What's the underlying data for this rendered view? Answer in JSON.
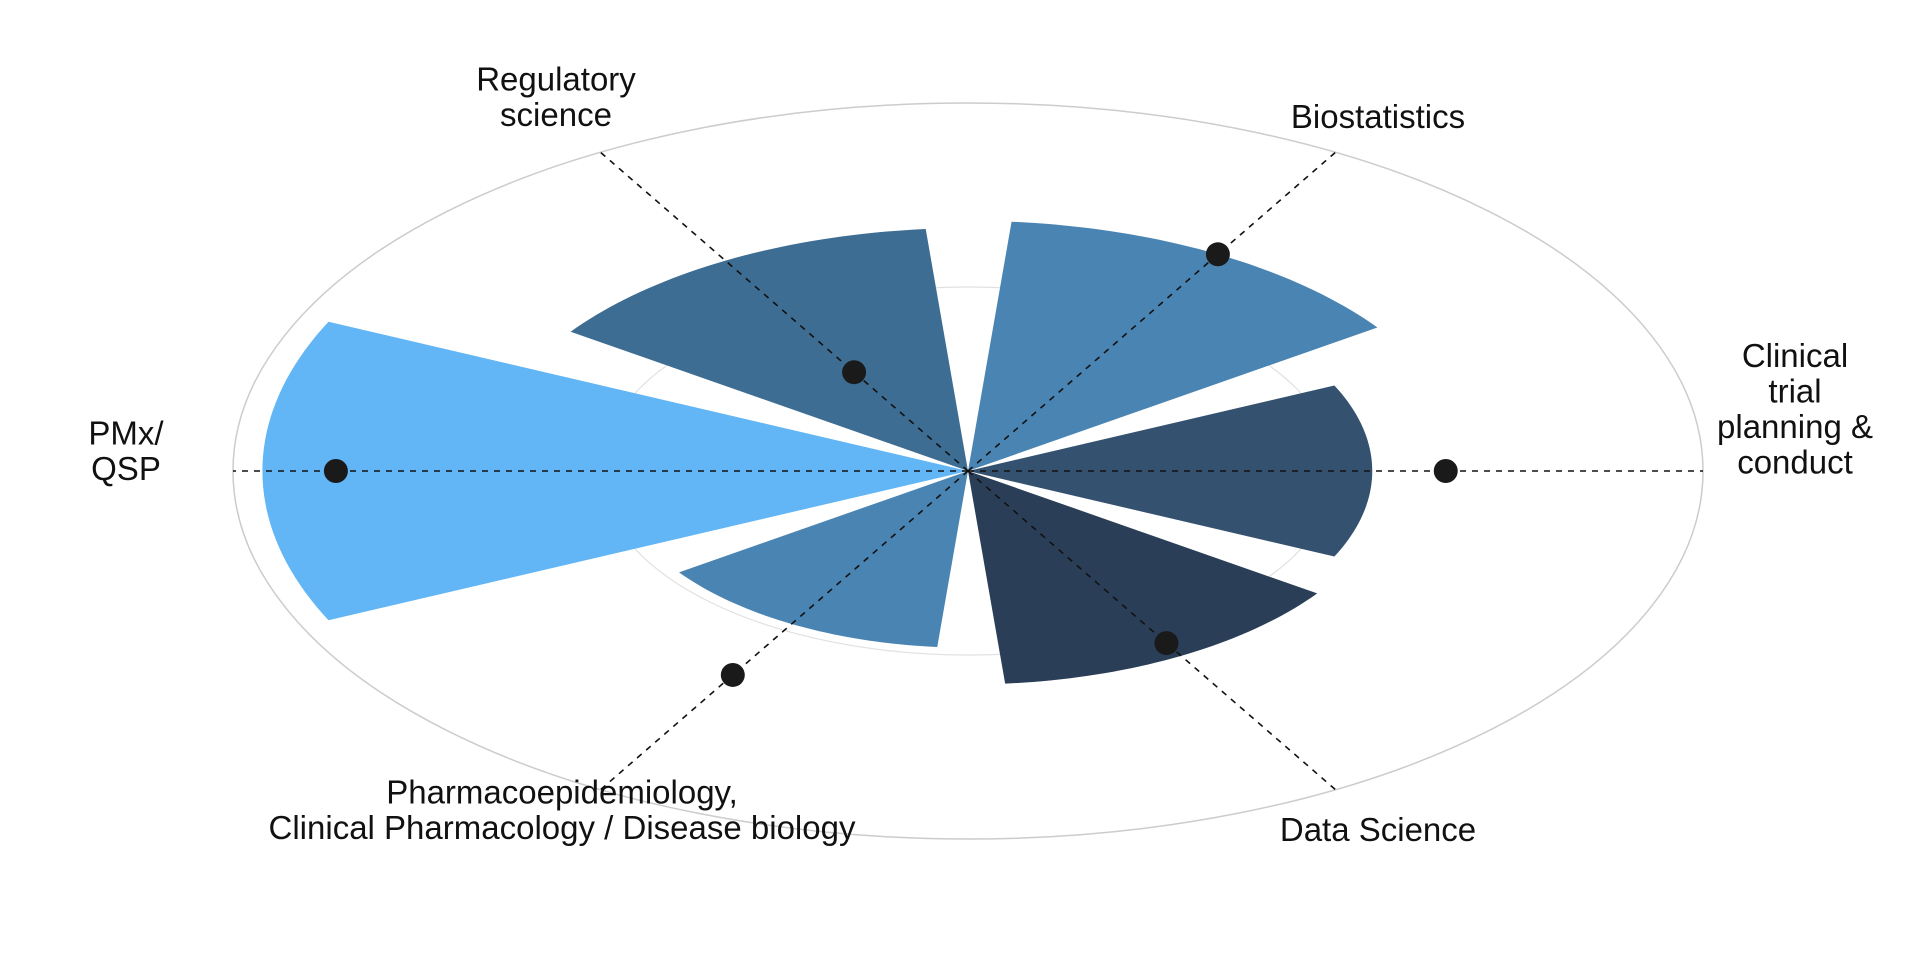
{
  "chart_data": {
    "type": "radar-wedge",
    "title": "",
    "grid": true,
    "legend": "none",
    "r_range": [
      0,
      1
    ],
    "categories": [
      {
        "label_lines": [
          "Clinical",
          "trial",
          "planning &",
          "conduct"
        ],
        "bar": 0.55,
        "point": 0.65,
        "color": "#34526f"
      },
      {
        "label_lines": [
          "Biostatistics"
        ],
        "bar": 0.68,
        "point": 0.68,
        "color": "#4a84b2"
      },
      {
        "label_lines": [
          "Regulatory",
          "science"
        ],
        "bar": 0.66,
        "point": 0.31,
        "color": "#3e6d93"
      },
      {
        "label_lines": [
          "PMx/",
          "QSP"
        ],
        "bar": 0.96,
        "point": 0.86,
        "color": "#63b6f5"
      },
      {
        "label_lines": [
          "Pharmacoepidemiology,",
          "Clinical Pharmacology / Disease biology"
        ],
        "bar": 0.48,
        "point": 0.64,
        "color": "#4a84b2"
      },
      {
        "label_lines": [
          "Data Science"
        ],
        "bar": 0.58,
        "point": 0.54,
        "color": "#2a3f57"
      }
    ]
  }
}
